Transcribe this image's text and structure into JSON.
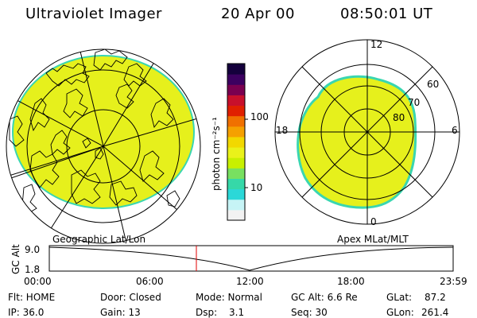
{
  "header": {
    "title": "Ultraviolet Imager",
    "date": "20 Apr 00",
    "time": "08:50:01 UT"
  },
  "left_panel": {
    "caption": "Geographic Lat/Lon"
  },
  "right_panel": {
    "caption": "Apex MLat/MLT",
    "mlt_labels": [
      "12",
      "18",
      "6",
      "0"
    ],
    "lat_labels": [
      "60",
      "70",
      "80"
    ]
  },
  "colorbar": {
    "unit_label": "photon cm⁻²s⁻¹",
    "tick_labels": [
      "100",
      "10"
    ],
    "colors": [
      "#f2f2f2",
      "#c6f4f6",
      "#2bd8d8",
      "#36d8a8",
      "#78e060",
      "#c8f000",
      "#eaf21a",
      "#f2d800",
      "#f5a000",
      "#f07000",
      "#e02000",
      "#c8102c",
      "#7a0050",
      "#3c0060",
      "#14003c"
    ]
  },
  "altitude_plot": {
    "ylabel": "GC Alt",
    "y_ticks": [
      "9.0",
      "1.8"
    ],
    "x_ticks": [
      "00:00",
      "06:00",
      "12:00",
      "18:00",
      "23:59"
    ],
    "marker_color": "#e00000"
  },
  "info": {
    "flt": "Flt: HOME",
    "door": "Door: Closed",
    "mode": "Mode: Normal",
    "gcalt": "GC Alt: 6.6 Re",
    "glat_label": "GLat:",
    "glat_value": "87.2",
    "ip": "IP: 36.0",
    "gain": "Gain: 13",
    "dsp_label": "Dsp:",
    "dsp_value": "3.1",
    "seq": "Seq: 30",
    "glon_label": "GLon:",
    "glon_value": "261.4"
  },
  "colors": {
    "aurora_fill": "#e6f01c",
    "aurora_edge": "#3ad6b0",
    "marker": "#e00000"
  }
}
